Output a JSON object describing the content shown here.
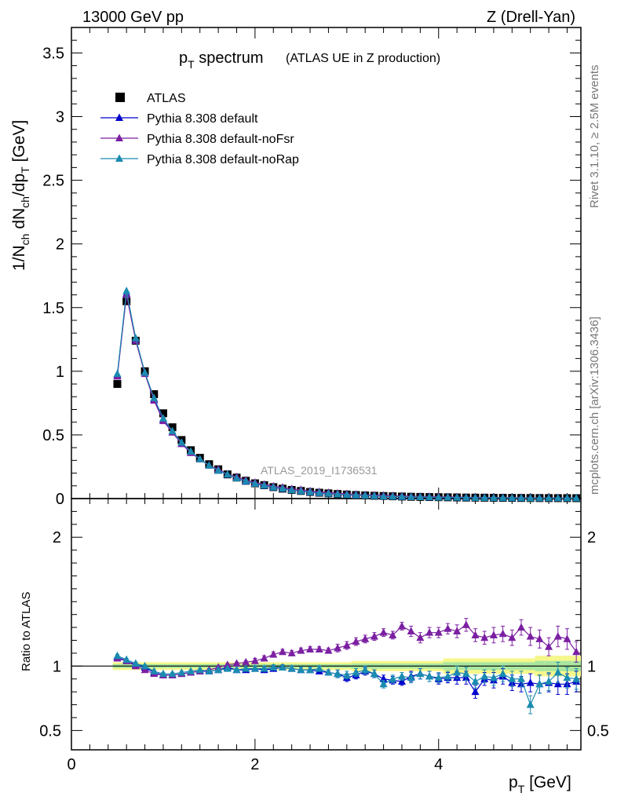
{
  "header": {
    "energy_label": "13000 GeV pp",
    "process_label": "Z (Drell-Yan)"
  },
  "side_labels": {
    "rivet": "Rivet 3.1.10, ≥ 2.5M events",
    "mcplots": "mcplots.cern.ch [arXiv:1306.3436]"
  },
  "title": {
    "main_pre": "p",
    "main_sub": "T",
    "main_post": " spectrum",
    "note": "(ATLAS UE in Z production)"
  },
  "analysis_id": "ATLAS_2019_I1736531",
  "axes": {
    "ylabel_top": "1/Nₙₕ dNₙₕ/dpₜ [GeV]",
    "ylabel_bottom": "Ratio to ATLAS",
    "xlabel": "pₜ [GeV]",
    "ytick_labels_top": [
      "0",
      "0.5",
      "1",
      "1.5",
      "2",
      "2.5",
      "3",
      "3.5"
    ],
    "ytick_labels_bottom": [
      "0.5",
      "1",
      "2"
    ],
    "xtick_labels": [
      "0",
      "2",
      "4"
    ]
  },
  "legend": [
    {
      "label": "ATLAS",
      "marker": "square",
      "color": "#000000"
    },
    {
      "label": "Pythia 8.308 default",
      "marker": "triangle",
      "color": "#0000cc"
    },
    {
      "label": "Pythia 8.308 default-noFsr",
      "marker": "triangle",
      "color": "#7b1fa2"
    },
    {
      "label": "Pythia 8.308 default-noRap",
      "marker": "triangle",
      "color": "#1b8bb0"
    }
  ],
  "chart_data": {
    "type": "line",
    "x_range": [
      0,
      5.55
    ],
    "top_panel": {
      "ylim": [
        0,
        3.7
      ],
      "x": [
        0.5,
        0.6,
        0.7,
        0.8,
        0.9,
        1.0,
        1.1,
        1.2,
        1.3,
        1.4,
        1.5,
        1.6,
        1.7,
        1.8,
        1.9,
        2.0,
        2.1,
        2.2,
        2.3,
        2.4,
        2.5,
        2.6,
        2.7,
        2.8,
        2.9,
        3.0,
        3.1,
        3.2,
        3.3,
        3.4,
        3.5,
        3.6,
        3.7,
        3.8,
        3.9,
        4.0,
        4.1,
        4.2,
        4.3,
        4.4,
        4.5,
        4.6,
        4.7,
        4.8,
        4.9,
        5.0,
        5.1,
        5.2,
        5.3,
        5.4,
        5.5
      ],
      "series": [
        {
          "name": "ATLAS",
          "values": [
            0.9,
            1.55,
            1.24,
            1.0,
            0.82,
            0.67,
            0.56,
            0.46,
            0.38,
            0.32,
            0.27,
            0.23,
            0.19,
            0.165,
            0.14,
            0.12,
            0.105,
            0.09,
            0.078,
            0.068,
            0.06,
            0.052,
            0.046,
            0.041,
            0.036,
            0.032,
            0.028,
            0.025,
            0.022,
            0.02,
            0.018,
            0.016,
            0.014,
            0.013,
            0.012,
            0.011,
            0.01,
            0.009,
            0.008,
            0.0075,
            0.007,
            0.0065,
            0.006,
            0.0055,
            0.005,
            0.0045,
            0.0042,
            0.004,
            0.0037,
            0.0035,
            0.0033
          ]
        },
        {
          "name": "Pythia 8.308 default",
          "values": [
            0.97,
            1.61,
            1.25,
            0.99,
            0.78,
            0.62,
            0.52,
            0.43,
            0.36,
            0.31,
            0.26,
            0.22,
            0.19,
            0.16,
            0.135,
            0.117,
            0.102,
            0.088,
            0.077,
            0.067,
            0.058,
            0.05,
            0.044,
            0.039,
            0.034,
            0.029,
            0.026,
            0.024,
            0.021,
            0.018,
            0.016,
            0.014,
            0.013,
            0.012,
            0.011,
            0.01,
            0.0091,
            0.0082,
            0.0073,
            0.006,
            0.0063,
            0.0058,
            0.0055,
            0.0048,
            0.0043,
            0.0039,
            0.0036,
            0.0035,
            0.0032,
            0.003,
            0.0029
          ]
        },
        {
          "name": "Pythia 8.308 default-noFsr",
          "values": [
            0.96,
            1.6,
            1.24,
            0.98,
            0.77,
            0.61,
            0.52,
            0.43,
            0.36,
            0.31,
            0.26,
            0.23,
            0.19,
            0.17,
            0.145,
            0.126,
            0.111,
            0.097,
            0.088,
            0.076,
            0.069,
            0.059,
            0.053,
            0.047,
            0.041,
            0.037,
            0.033,
            0.029,
            0.027,
            0.025,
            0.022,
            0.021,
            0.018,
            0.016,
            0.015,
            0.014,
            0.013,
            0.012,
            0.01,
            0.0095,
            0.0085,
            0.008,
            0.0075,
            0.007,
            0.0072,
            0.0055,
            0.005,
            0.0048,
            0.0045,
            0.0042,
            0.004
          ]
        },
        {
          "name": "Pythia 8.308 default-noRap",
          "values": [
            0.98,
            1.63,
            1.26,
            0.99,
            0.79,
            0.63,
            0.53,
            0.44,
            0.37,
            0.31,
            0.26,
            0.22,
            0.19,
            0.16,
            0.137,
            0.118,
            0.103,
            0.089,
            0.078,
            0.066,
            0.058,
            0.051,
            0.045,
            0.039,
            0.034,
            0.03,
            0.027,
            0.024,
            0.021,
            0.017,
            0.016,
            0.015,
            0.013,
            0.012,
            0.011,
            0.0095,
            0.0092,
            0.0083,
            0.0075,
            0.0065,
            0.0062,
            0.0057,
            0.0053,
            0.0048,
            0.0044,
            0.0032,
            0.0036,
            0.0035,
            0.0035,
            0.0031,
            0.003
          ]
        }
      ]
    },
    "ratio_panel": {
      "ylim": [
        0.35,
        2.3
      ],
      "reference": 1,
      "band_inner_halfwidth": [
        0.015,
        0.015,
        0.015,
        0.015,
        0.015,
        0.015,
        0.015,
        0.015,
        0.015,
        0.015,
        0.015,
        0.015,
        0.015,
        0.015,
        0.015,
        0.015,
        0.015,
        0.015,
        0.015,
        0.015,
        0.015,
        0.015,
        0.015,
        0.015,
        0.015,
        0.015,
        0.02,
        0.02,
        0.02,
        0.02,
        0.02,
        0.02,
        0.02,
        0.02,
        0.02,
        0.02,
        0.03,
        0.03,
        0.03,
        0.03,
        0.03,
        0.03,
        0.03,
        0.03,
        0.03,
        0.03,
        0.04,
        0.04,
        0.04,
        0.04,
        0.04
      ],
      "band_outer_halfwidth": [
        0.03,
        0.03,
        0.03,
        0.03,
        0.03,
        0.03,
        0.03,
        0.03,
        0.03,
        0.03,
        0.03,
        0.03,
        0.03,
        0.03,
        0.03,
        0.03,
        0.03,
        0.03,
        0.03,
        0.03,
        0.03,
        0.03,
        0.03,
        0.03,
        0.03,
        0.03,
        0.04,
        0.04,
        0.04,
        0.04,
        0.04,
        0.04,
        0.04,
        0.04,
        0.04,
        0.04,
        0.06,
        0.06,
        0.06,
        0.06,
        0.06,
        0.06,
        0.06,
        0.06,
        0.06,
        0.06,
        0.08,
        0.08,
        0.08,
        0.08,
        0.08
      ],
      "series": [
        {
          "name": "Pythia 8.308 default",
          "values": [
            1.07,
            1.04,
            1.01,
            0.99,
            0.95,
            0.93,
            0.93,
            0.94,
            0.95,
            0.96,
            0.96,
            0.97,
            0.99,
            0.97,
            0.97,
            0.98,
            0.97,
            0.98,
            0.99,
            0.98,
            0.97,
            0.97,
            0.96,
            0.95,
            0.94,
            0.91,
            0.93,
            0.96,
            0.94,
            0.9,
            0.89,
            0.88,
            0.92,
            0.94,
            0.92,
            0.9,
            0.91,
            0.91,
            0.91,
            0.8,
            0.9,
            0.89,
            0.92,
            0.87,
            0.86,
            0.87,
            0.86,
            0.87,
            0.86,
            0.86,
            0.88
          ],
          "errors": [
            0.01,
            0.01,
            0.01,
            0.01,
            0.01,
            0.01,
            0.01,
            0.01,
            0.01,
            0.01,
            0.01,
            0.01,
            0.01,
            0.01,
            0.01,
            0.02,
            0.02,
            0.02,
            0.02,
            0.02,
            0.02,
            0.02,
            0.02,
            0.02,
            0.03,
            0.03,
            0.03,
            0.03,
            0.03,
            0.03,
            0.03,
            0.03,
            0.04,
            0.04,
            0.04,
            0.04,
            0.04,
            0.05,
            0.05,
            0.05,
            0.05,
            0.06,
            0.06,
            0.06,
            0.06,
            0.07,
            0.07,
            0.07,
            0.08,
            0.08,
            0.08
          ]
        },
        {
          "name": "Pythia 8.308 default-noFsr",
          "values": [
            1.06,
            1.04,
            1.0,
            0.97,
            0.94,
            0.93,
            0.93,
            0.94,
            0.95,
            0.96,
            0.97,
            0.99,
            1.01,
            1.02,
            1.03,
            1.04,
            1.06,
            1.09,
            1.11,
            1.1,
            1.12,
            1.13,
            1.13,
            1.12,
            1.14,
            1.16,
            1.19,
            1.21,
            1.23,
            1.26,
            1.24,
            1.31,
            1.27,
            1.22,
            1.26,
            1.26,
            1.29,
            1.27,
            1.32,
            1.24,
            1.22,
            1.24,
            1.25,
            1.22,
            1.3,
            1.23,
            1.21,
            1.15,
            1.23,
            1.21,
            1.11
          ],
          "errors": [
            0.01,
            0.01,
            0.01,
            0.01,
            0.01,
            0.01,
            0.01,
            0.01,
            0.01,
            0.01,
            0.01,
            0.01,
            0.01,
            0.01,
            0.01,
            0.02,
            0.02,
            0.02,
            0.02,
            0.02,
            0.02,
            0.02,
            0.02,
            0.02,
            0.03,
            0.03,
            0.03,
            0.03,
            0.03,
            0.03,
            0.03,
            0.03,
            0.04,
            0.04,
            0.04,
            0.04,
            0.04,
            0.05,
            0.05,
            0.05,
            0.05,
            0.06,
            0.06,
            0.06,
            0.06,
            0.07,
            0.07,
            0.07,
            0.08,
            0.08,
            0.08
          ]
        },
        {
          "name": "Pythia 8.308 default-noRap",
          "values": [
            1.08,
            1.05,
            1.02,
            1.0,
            0.96,
            0.94,
            0.94,
            0.95,
            0.96,
            0.97,
            0.96,
            0.97,
            0.98,
            0.97,
            0.98,
            0.98,
            0.98,
            0.99,
            0.99,
            0.98,
            0.97,
            0.97,
            0.98,
            0.95,
            0.94,
            0.93,
            0.95,
            0.97,
            0.94,
            0.86,
            0.9,
            0.92,
            0.91,
            0.94,
            0.92,
            0.91,
            0.92,
            0.95,
            0.94,
            0.88,
            0.92,
            0.91,
            0.94,
            0.9,
            0.9,
            0.7,
            0.86,
            0.88,
            0.95,
            0.91,
            0.9
          ],
          "errors": [
            0.01,
            0.01,
            0.01,
            0.01,
            0.01,
            0.01,
            0.01,
            0.01,
            0.01,
            0.01,
            0.01,
            0.01,
            0.01,
            0.01,
            0.01,
            0.02,
            0.02,
            0.02,
            0.02,
            0.02,
            0.02,
            0.02,
            0.02,
            0.02,
            0.03,
            0.03,
            0.03,
            0.03,
            0.03,
            0.03,
            0.03,
            0.03,
            0.04,
            0.04,
            0.04,
            0.04,
            0.04,
            0.05,
            0.05,
            0.05,
            0.05,
            0.06,
            0.06,
            0.06,
            0.06,
            0.07,
            0.07,
            0.07,
            0.08,
            0.08,
            0.08
          ]
        }
      ]
    }
  }
}
